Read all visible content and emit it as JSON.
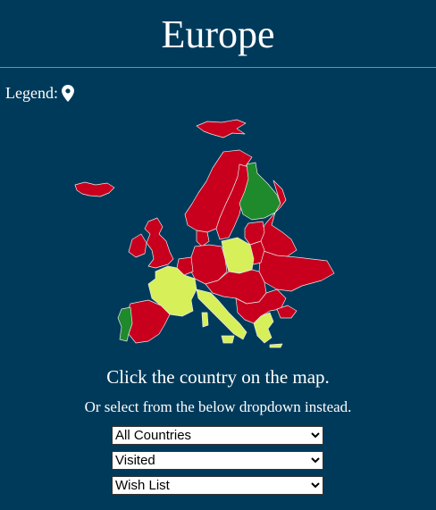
{
  "header": {
    "title": "Europe"
  },
  "legend": {
    "label": "Legend:",
    "icon": "map-pin-icon"
  },
  "map": {
    "colors": {
      "not_visited": "#c8001e",
      "visited": "#1f8a2c",
      "wish_list": "#d7f05a",
      "border": "#e9e9e9"
    },
    "countries": [
      {
        "name": "Iceland",
        "status": "not_visited"
      },
      {
        "name": "Svalbard",
        "status": "not_visited"
      },
      {
        "name": "Norway",
        "status": "not_visited"
      },
      {
        "name": "Sweden",
        "status": "not_visited"
      },
      {
        "name": "Finland",
        "status": "visited"
      },
      {
        "name": "United Kingdom",
        "status": "not_visited"
      },
      {
        "name": "Ireland",
        "status": "not_visited"
      },
      {
        "name": "France",
        "status": "wish_list"
      },
      {
        "name": "Spain",
        "status": "not_visited"
      },
      {
        "name": "Portugal",
        "status": "visited"
      },
      {
        "name": "Germany",
        "status": "not_visited"
      },
      {
        "name": "Poland",
        "status": "wish_list"
      },
      {
        "name": "Italy",
        "status": "wish_list"
      },
      {
        "name": "Greece",
        "status": "wish_list"
      },
      {
        "name": "Russia (west)",
        "status": "not_visited"
      },
      {
        "name": "Baltics",
        "status": "not_visited"
      },
      {
        "name": "Ukraine",
        "status": "not_visited"
      },
      {
        "name": "Balkans",
        "status": "not_visited"
      },
      {
        "name": "Denmark",
        "status": "not_visited"
      }
    ]
  },
  "instructions": {
    "main": "Click the country on the map.",
    "sub": "Or select from the below dropdown instead."
  },
  "dropdowns": [
    {
      "selected": "All Countries"
    },
    {
      "selected": "Visited"
    },
    {
      "selected": "Wish List"
    }
  ]
}
